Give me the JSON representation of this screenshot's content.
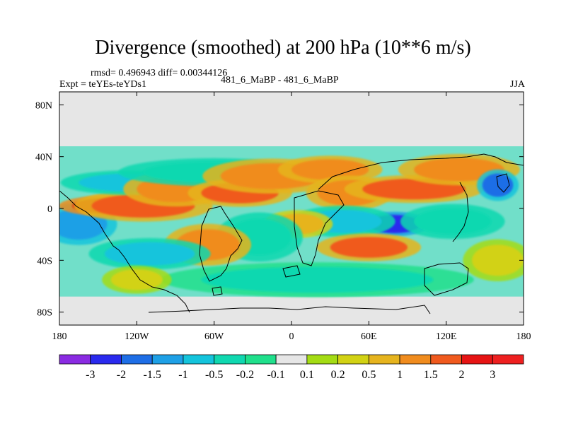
{
  "chart_data": {
    "type": "heatmap",
    "title": "Divergence (smoothed) at 200 hPa (10**6 m/s)",
    "stats_label": "rmsd= 0.496943 diff= 0.00344126",
    "experiment_label": "Expt = teYEs-teYDs1",
    "center_label": "481_6_MaBP - 481_6_MaBP",
    "season_label": "JJA",
    "xlabel": "",
    "ylabel": "",
    "xlim": [
      -180,
      180
    ],
    "ylim": [
      -90,
      90
    ],
    "x_ticks": [
      {
        "value": -180,
        "label": "180"
      },
      {
        "value": -120,
        "label": "120W"
      },
      {
        "value": -60,
        "label": "60W"
      },
      {
        "value": 0,
        "label": "0"
      },
      {
        "value": 60,
        "label": "60E"
      },
      {
        "value": 120,
        "label": "120E"
      },
      {
        "value": 180,
        "label": "180"
      }
    ],
    "y_ticks": [
      {
        "value": 80,
        "label": "80N"
      },
      {
        "value": 40,
        "label": "40N"
      },
      {
        "value": 0,
        "label": "0"
      },
      {
        "value": -40,
        "label": "40S"
      },
      {
        "value": -80,
        "label": "80S"
      }
    ],
    "colorbar": {
      "levels": [
        "-3",
        "-2",
        "-1.5",
        "-1",
        "-0.5",
        "-0.2",
        "-0.1",
        "0.1",
        "0.2",
        "0.5",
        "1",
        "1.5",
        "2",
        "3"
      ],
      "colors": [
        "#8a2be2",
        "#2a2aee",
        "#1e6ee6",
        "#1ea0e6",
        "#14c4dc",
        "#10d8b0",
        "#20e08c",
        "#e6e6e6",
        "#a4dc14",
        "#d2d214",
        "#e6b41e",
        "#f08c1e",
        "#f05a1e",
        "#e61414",
        "#ee2020"
      ]
    },
    "features": [
      {
        "lon": -155,
        "lat": -5,
        "value": -3.0,
        "rlon": 9,
        "rlat": 6
      },
      {
        "lon": -165,
        "lat": -12,
        "value": -1.5,
        "rlon": 22,
        "rlat": 12
      },
      {
        "lon": -140,
        "lat": 2,
        "value": 2.0,
        "rlon": 30,
        "rlat": 6
      },
      {
        "lon": -115,
        "lat": 2,
        "value": 1.5,
        "rlon": 40,
        "rlat": 9
      },
      {
        "lon": -125,
        "lat": 20,
        "value": -1.0,
        "rlon": 40,
        "rlat": 7
      },
      {
        "lon": -90,
        "lat": 15,
        "value": 1.0,
        "rlon": 30,
        "rlat": 10
      },
      {
        "lon": -60,
        "lat": 28,
        "value": -0.5,
        "rlon": 55,
        "rlat": 8
      },
      {
        "lon": -40,
        "lat": 12,
        "value": 1.5,
        "rlon": 30,
        "rlat": 8
      },
      {
        "lon": -15,
        "lat": 25,
        "value": 1.0,
        "rlon": 40,
        "rlat": 10
      },
      {
        "lon": 30,
        "lat": 30,
        "value": 1.0,
        "rlon": 30,
        "rlat": 8
      },
      {
        "lon": 45,
        "lat": 12,
        "value": 1.0,
        "rlon": 25,
        "rlat": 10
      },
      {
        "lon": 95,
        "lat": 15,
        "value": 1.5,
        "rlon": 40,
        "rlat": 8
      },
      {
        "lon": 130,
        "lat": 30,
        "value": 1.0,
        "rlon": 35,
        "rlat": 9
      },
      {
        "lon": 160,
        "lat": 18,
        "value": -2.0,
        "rlon": 12,
        "rlat": 9
      },
      {
        "lon": 80,
        "lat": -12,
        "value": -2.5,
        "rlon": 20,
        "rlat": 7
      },
      {
        "lon": 40,
        "lat": -10,
        "value": -1.0,
        "rlon": 30,
        "rlat": 9
      },
      {
        "lon": 5,
        "lat": -12,
        "value": 0.5,
        "rlon": 20,
        "rlat": 8
      },
      {
        "lon": -25,
        "lat": -22,
        "value": -0.5,
        "rlon": 25,
        "rlat": 14
      },
      {
        "lon": -65,
        "lat": -28,
        "value": 1.0,
        "rlon": 25,
        "rlat": 12
      },
      {
        "lon": -110,
        "lat": -35,
        "value": -1.0,
        "rlon": 35,
        "rlat": 9
      },
      {
        "lon": 60,
        "lat": -30,
        "value": 1.5,
        "rlon": 30,
        "rlat": 8
      },
      {
        "lon": 125,
        "lat": -10,
        "value": -0.5,
        "rlon": 30,
        "rlat": 10
      },
      {
        "lon": 20,
        "lat": -55,
        "value": -0.3,
        "rlon": 90,
        "rlat": 10
      },
      {
        "lon": -120,
        "lat": -55,
        "value": 0.3,
        "rlon": 20,
        "rlat": 8
      },
      {
        "lon": 160,
        "lat": -40,
        "value": 0.3,
        "rlon": 20,
        "rlat": 12
      }
    ]
  }
}
